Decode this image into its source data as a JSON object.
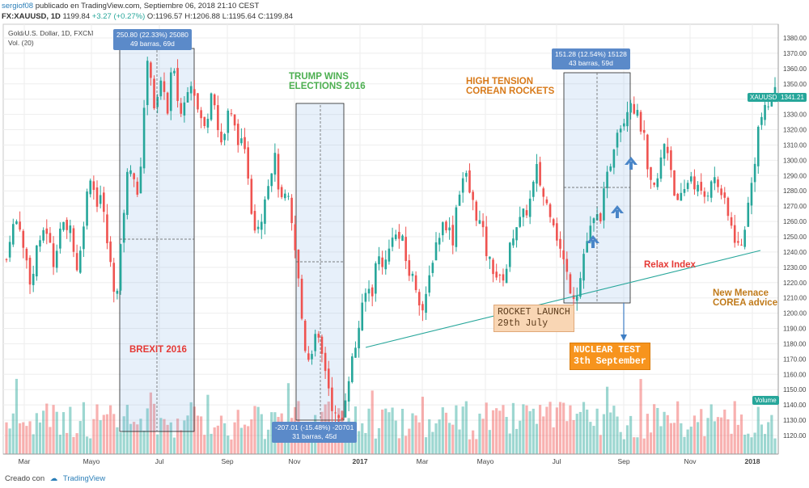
{
  "header": {
    "user": "sergiof08",
    "published": "publicado en TradingView.com, Septiembre 06, 2018 21:10 CEST",
    "symbol": "FX:XAUUSD, 1D",
    "last": "1199.84",
    "change": "+3.27 (+0.27%)",
    "open": "O:1196.57",
    "high": "H:1206.88",
    "low": "L:1195.64",
    "close": "C:1199.84"
  },
  "legend": {
    "series_title": "Gold/U.S. Dollar, 1D, FXCM",
    "volume_title": "Vol. (20)"
  },
  "price_tag": {
    "label": "XAUUSD",
    "value": "1341.21"
  },
  "volume_tag": "Volume",
  "footer": {
    "created": "Creado con",
    "brand": "TradingView"
  },
  "measures": [
    {
      "line1": "250.80 (22.33%) 25080",
      "line2": "49 barras, 69d"
    },
    {
      "line1": "-207.01 (-15.48%) -20701",
      "line2": "31 barras, 45d"
    },
    {
      "line1": "151.28 (12.54%) 15128",
      "line2": "43 barras, 59d"
    }
  ],
  "annotations": {
    "brexit": "BREXIT 2016",
    "trump_1": "TRUMP WINS",
    "trump_2": "ELECTIONS 2016",
    "tension_1": "HIGH TENSION",
    "tension_2": "COREAN ROCKETS",
    "relax": "Relax Index",
    "menace_1": "New Menace",
    "menace_2": "COREA advice",
    "rocket_1": "ROCKET LAUNCH",
    "rocket_2": "29th July",
    "nuclear_1": "NUCLEAR TEST",
    "nuclear_2": "3th September"
  },
  "chart_data": {
    "type": "candlestick",
    "title": "Gold/U.S. Dollar, 1D, FXCM",
    "x_ticks": [
      "Mar",
      "Mayo",
      "Jul",
      "Sep",
      "Nov",
      "2017",
      "Mar",
      "Mayo",
      "Jul",
      "Sep",
      "Nov",
      "2018"
    ],
    "y_ticks": [
      1120,
      1130,
      1140,
      1150,
      1160,
      1170,
      1180,
      1190,
      1200,
      1210,
      1220,
      1230,
      1240,
      1250,
      1260,
      1270,
      1280,
      1290,
      1300,
      1310,
      1320,
      1330,
      1340,
      1350,
      1360,
      1370,
      1380
    ],
    "ylim": [
      1112,
      1385
    ],
    "price_path": [
      1235,
      1255,
      1258,
      1262,
      1240,
      1232,
      1215,
      1245,
      1243,
      1260,
      1248,
      1232,
      1248,
      1260,
      1250,
      1262,
      1235,
      1228,
      1258,
      1278,
      1295,
      1270,
      1280,
      1262,
      1240,
      1222,
      1210,
      1245,
      1280,
      1300,
      1290,
      1270,
      1318,
      1362,
      1358,
      1330,
      1345,
      1352,
      1328,
      1365,
      1345,
      1330,
      1338,
      1355,
      1350,
      1333,
      1325,
      1318,
      1350,
      1340,
      1315,
      1310,
      1330,
      1328,
      1318,
      1312,
      1305,
      1290,
      1260,
      1258,
      1262,
      1282,
      1288,
      1305,
      1285,
      1268,
      1280,
      1260,
      1240,
      1215,
      1182,
      1170,
      1178,
      1185,
      1175,
      1165,
      1150,
      1135,
      1128,
      1130,
      1150,
      1165,
      1175,
      1192,
      1205,
      1218,
      1212,
      1232,
      1238,
      1230,
      1240,
      1255,
      1248,
      1250,
      1235,
      1225,
      1222,
      1212,
      1202,
      1210,
      1232,
      1245,
      1252,
      1260,
      1258,
      1245,
      1272,
      1285,
      1292,
      1280,
      1270,
      1262,
      1255,
      1240,
      1232,
      1228,
      1220,
      1225,
      1232,
      1250,
      1258,
      1260,
      1265,
      1270,
      1282,
      1295,
      1280,
      1272,
      1268,
      1260,
      1245,
      1236,
      1225,
      1215,
      1212,
      1220,
      1240,
      1250,
      1258,
      1262,
      1265,
      1282,
      1295,
      1310,
      1325,
      1322,
      1335,
      1340,
      1333,
      1325,
      1318,
      1290,
      1280,
      1282,
      1298,
      1312,
      1305,
      1285,
      1270,
      1275,
      1282,
      1292,
      1285,
      1280,
      1275,
      1278,
      1290,
      1285,
      1282,
      1272,
      1262,
      1255,
      1245,
      1242,
      1260,
      1275,
      1295,
      1320,
      1330,
      1332,
      1340,
      1345
    ]
  }
}
